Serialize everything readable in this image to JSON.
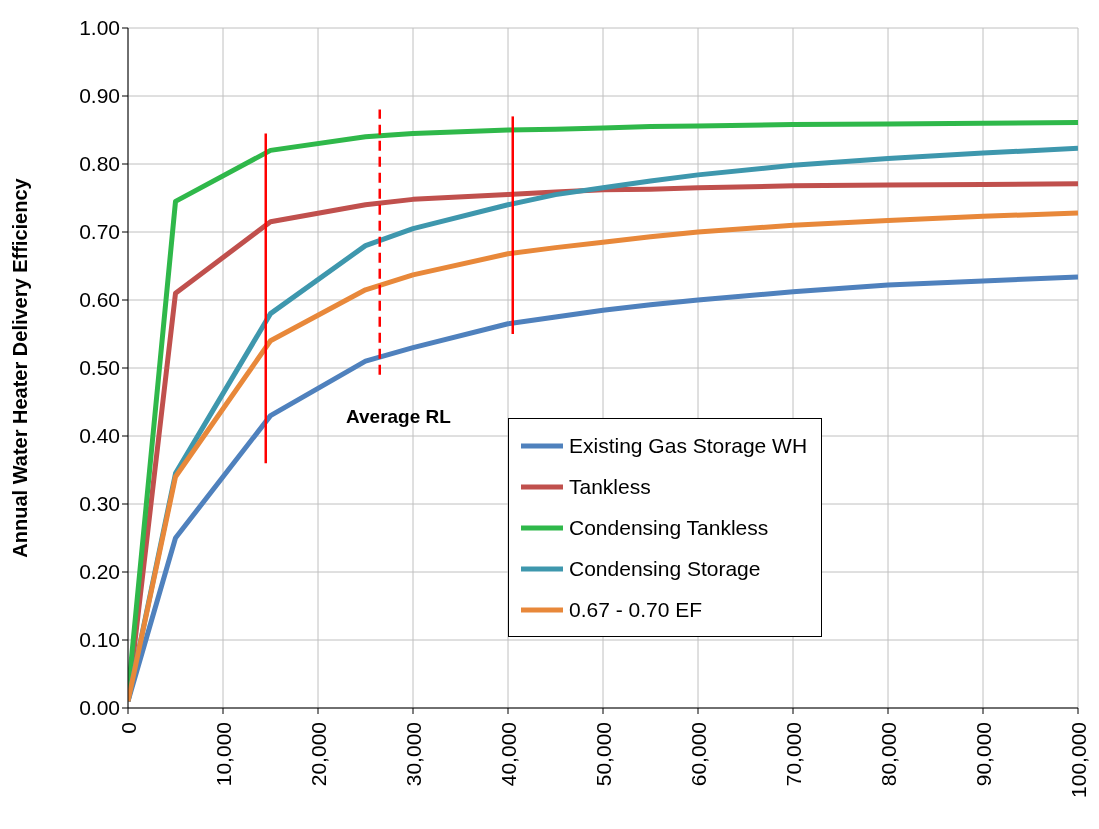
{
  "chart_data": {
    "type": "line",
    "ylabel": "Annual Water Heater Delivery Efficiency",
    "x": [
      0,
      5000,
      15000,
      25000,
      30000,
      40000,
      45000,
      50000,
      55000,
      60000,
      70000,
      80000,
      90000,
      100000
    ],
    "series": [
      {
        "name": "Existing Gas Storage WH",
        "color": "#4f81bd",
        "values": [
          0.01,
          0.25,
          0.43,
          0.51,
          0.53,
          0.565,
          0.575,
          0.585,
          0.593,
          0.6,
          0.612,
          0.622,
          0.628,
          0.634
        ]
      },
      {
        "name": "Tankless",
        "color": "#c0504d",
        "values": [
          0.01,
          0.61,
          0.715,
          0.74,
          0.748,
          0.755,
          0.759,
          0.762,
          0.763,
          0.765,
          0.768,
          0.769,
          0.77,
          0.771
        ]
      },
      {
        "name": "Condensing Tankless",
        "color": "#2fb84a",
        "values": [
          0.02,
          0.745,
          0.82,
          0.84,
          0.845,
          0.85,
          0.851,
          0.853,
          0.855,
          0.856,
          0.858,
          0.859,
          0.86,
          0.861
        ]
      },
      {
        "name": "Condensing Storage",
        "color": "#3e97ad",
        "values": [
          0.01,
          0.345,
          0.58,
          0.68,
          0.705,
          0.74,
          0.755,
          0.765,
          0.775,
          0.784,
          0.798,
          0.808,
          0.816,
          0.823
        ]
      },
      {
        "name": "0.67 - 0.70 EF",
        "color": "#e8883a",
        "values": [
          0.01,
          0.34,
          0.54,
          0.615,
          0.637,
          0.668,
          0.677,
          0.685,
          0.693,
          0.7,
          0.71,
          0.717,
          0.723,
          0.728
        ]
      },
      {
        "type": "line",
        "color": "#ff0000",
        "x": [
          14500,
          14500
        ],
        "values": [
          0.36,
          0.845
        ],
        "line_style": "solid"
      },
      {
        "type": "line",
        "color": "#ff0000",
        "x": [
          26500,
          26500
        ],
        "values": [
          0.49,
          0.88
        ],
        "line_style": "dashed"
      },
      {
        "type": "line",
        "color": "#ff0000",
        "x": [
          40500,
          40500
        ],
        "values": [
          0.55,
          0.87
        ],
        "line_style": "solid"
      }
    ],
    "annotations": [
      "Average RL"
    ],
    "xlim": [
      0,
      100000
    ],
    "xticks": [
      {
        "value": 0,
        "label": "0"
      },
      {
        "value": 10000,
        "label": "10,000"
      },
      {
        "value": 20000,
        "label": "20,000"
      },
      {
        "value": 30000,
        "label": "30,000"
      },
      {
        "value": 40000,
        "label": "40,000"
      },
      {
        "value": 50000,
        "label": "50,000"
      },
      {
        "value": 60000,
        "label": "60,000"
      },
      {
        "value": 70000,
        "label": "70,000"
      },
      {
        "value": 80000,
        "label": "80,000"
      },
      {
        "value": 90000,
        "label": "90,000"
      },
      {
        "value": 100000,
        "label": "100,000"
      }
    ],
    "ylim": [
      0,
      1
    ],
    "yticks": [
      {
        "value": 0,
        "label": "0.00"
      },
      {
        "value": 0.1,
        "label": "0.10"
      },
      {
        "value": 0.2,
        "label": "0.20"
      },
      {
        "value": 0.3,
        "label": "0.30"
      },
      {
        "value": 0.4,
        "label": "0.40"
      },
      {
        "value": 0.5,
        "label": "0.50"
      },
      {
        "value": 0.6,
        "label": "0.60"
      },
      {
        "value": 0.7,
        "label": "0.70"
      },
      {
        "value": 0.8,
        "label": "0.80"
      },
      {
        "value": 0.9,
        "label": "0.90"
      },
      {
        "value": 1,
        "label": "1.00"
      }
    ],
    "grid": true,
    "legend": "bottom right",
    "marker": "none",
    "line_style": "solid"
  }
}
